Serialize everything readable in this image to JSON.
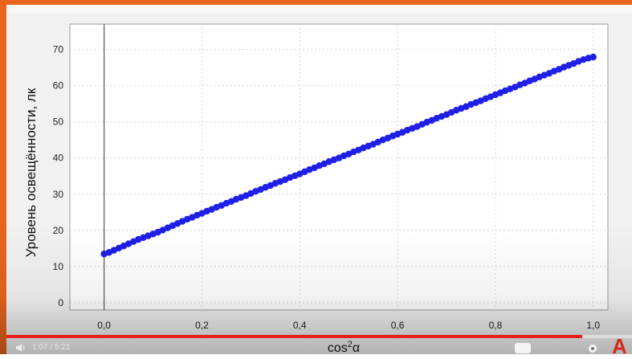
{
  "chart_data": {
    "type": "scatter",
    "title": "",
    "xlabel": "cos²α",
    "ylabel": "Уровень освещённости, лк",
    "xlim": [
      -0.07,
      1.03
    ],
    "ylim": [
      -2,
      77
    ],
    "x_ticks": [
      "0,0",
      "0,2",
      "0,4",
      "0,6",
      "0,8",
      "1,0"
    ],
    "y_ticks": [
      "0",
      "10",
      "20",
      "30",
      "40",
      "50",
      "60",
      "70"
    ],
    "grid": true,
    "series": [
      {
        "color": "#1f1fe6",
        "x": [
          0.0,
          0.01,
          0.02,
          0.03,
          0.04,
          0.05,
          0.06,
          0.07,
          0.08,
          0.09,
          0.1,
          0.11,
          0.12,
          0.13,
          0.14,
          0.15,
          0.16,
          0.17,
          0.18,
          0.19,
          0.2,
          0.21,
          0.22,
          0.23,
          0.24,
          0.25,
          0.26,
          0.27,
          0.28,
          0.29,
          0.3,
          0.31,
          0.32,
          0.33,
          0.34,
          0.35,
          0.36,
          0.37,
          0.38,
          0.39,
          0.4,
          0.41,
          0.42,
          0.43,
          0.44,
          0.45,
          0.46,
          0.47,
          0.48,
          0.49,
          0.5,
          0.51,
          0.52,
          0.53,
          0.54,
          0.55,
          0.56,
          0.57,
          0.58,
          0.59,
          0.6,
          0.61,
          0.62,
          0.63,
          0.64,
          0.65,
          0.66,
          0.67,
          0.68,
          0.69,
          0.7,
          0.71,
          0.72,
          0.73,
          0.74,
          0.75,
          0.76,
          0.77,
          0.78,
          0.79,
          0.8,
          0.81,
          0.82,
          0.83,
          0.84,
          0.85,
          0.86,
          0.87,
          0.88,
          0.89,
          0.9,
          0.91,
          0.92,
          0.93,
          0.94,
          0.95,
          0.96,
          0.97,
          0.98,
          0.99,
          1.0
        ],
        "y": [
          13.5,
          13.9,
          14.5,
          15.1,
          15.7,
          16.3,
          16.9,
          17.5,
          18.0,
          18.5,
          19.0,
          19.5,
          20.1,
          20.7,
          21.3,
          21.9,
          22.5,
          23.1,
          23.6,
          24.2,
          24.7,
          25.3,
          25.8,
          26.4,
          26.9,
          27.5,
          28.0,
          28.6,
          29.1,
          29.6,
          30.2,
          30.8,
          31.3,
          31.9,
          32.4,
          33.0,
          33.5,
          34.0,
          34.6,
          35.1,
          35.6,
          36.2,
          36.8,
          37.3,
          37.9,
          38.4,
          39.0,
          39.5,
          40.0,
          40.6,
          41.1,
          41.7,
          42.2,
          42.8,
          43.3,
          43.8,
          44.4,
          45.0,
          45.5,
          46.1,
          46.6,
          47.1,
          47.7,
          48.2,
          48.7,
          49.3,
          49.9,
          50.4,
          51.0,
          51.5,
          52.0,
          52.6,
          53.2,
          53.7,
          54.2,
          54.8,
          55.3,
          55.8,
          56.4,
          56.9,
          57.5,
          58.0,
          58.6,
          59.1,
          59.6,
          60.2,
          60.7,
          61.3,
          61.8,
          62.4,
          62.9,
          63.4,
          64.0,
          64.5,
          65.1,
          65.6,
          66.1,
          66.7,
          67.2,
          67.6,
          67.9
        ]
      }
    ]
  },
  "player": {
    "progress": 0.92,
    "time": "1:07 / 5:21"
  }
}
